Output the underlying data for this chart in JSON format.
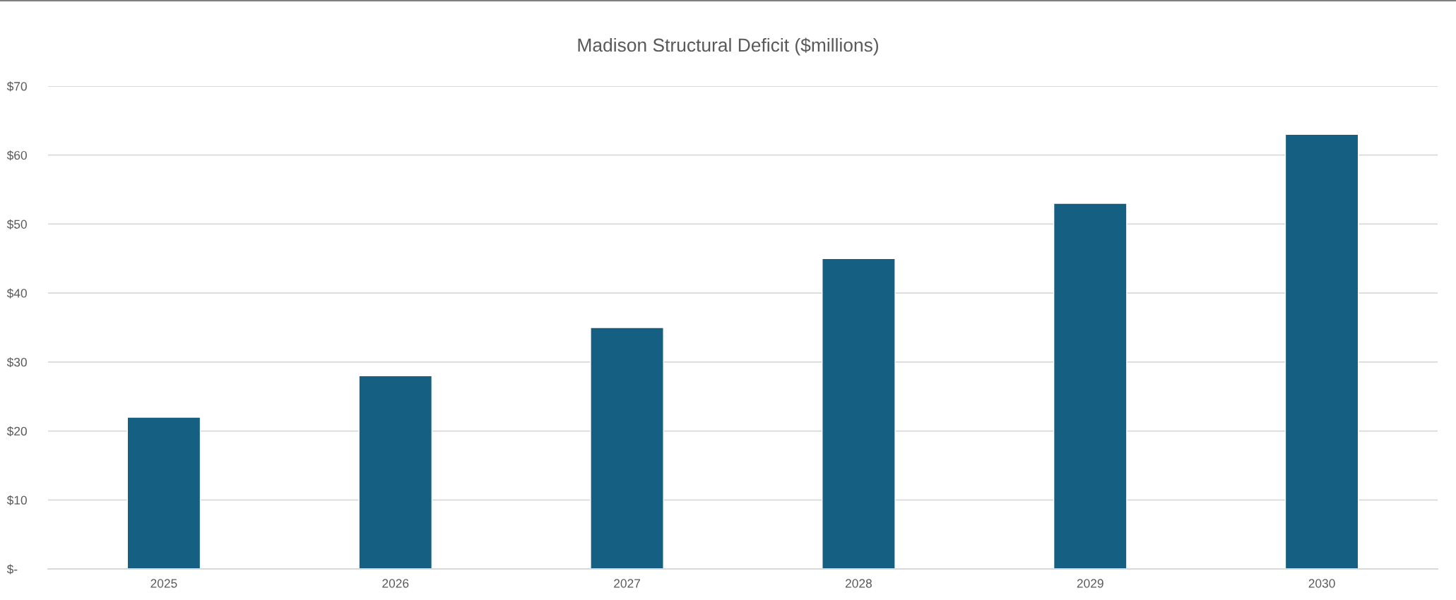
{
  "chart_data": {
    "type": "bar",
    "title": "Madison Structural Deficit ($millions)",
    "categories": [
      "2025",
      "2026",
      "2027",
      "2028",
      "2029",
      "2030"
    ],
    "values": [
      22,
      28,
      35,
      45,
      53,
      63
    ],
    "color": "#156082",
    "ylim": [
      0,
      70
    ],
    "yticks": [
      {
        "value": 0,
        "label": "$-"
      },
      {
        "value": 10,
        "label": "$10"
      },
      {
        "value": 20,
        "label": "$20"
      },
      {
        "value": 30,
        "label": "$30"
      },
      {
        "value": 40,
        "label": "$40"
      },
      {
        "value": 50,
        "label": "$50"
      },
      {
        "value": 60,
        "label": "$60"
      },
      {
        "value": 70,
        "label": "$70"
      }
    ],
    "grid": "y",
    "legend": false
  }
}
